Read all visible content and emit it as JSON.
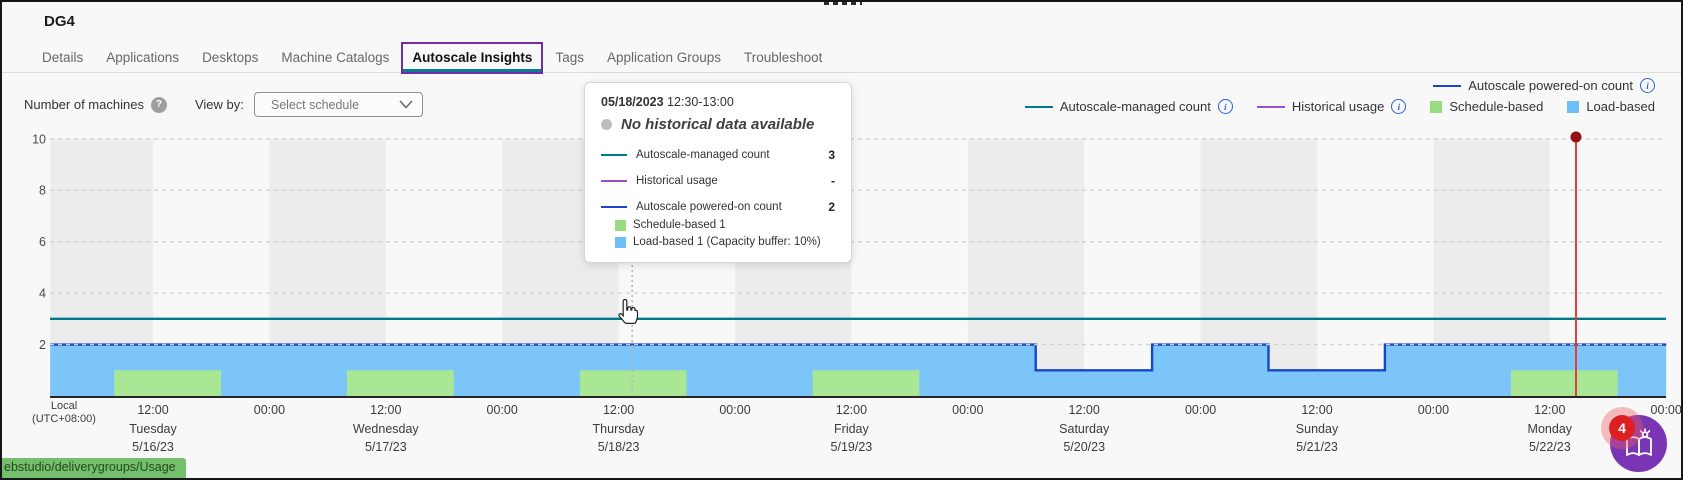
{
  "window": {
    "title": "DG4"
  },
  "tabs": [
    {
      "label": "Details",
      "active": false
    },
    {
      "label": "Applications",
      "active": false
    },
    {
      "label": "Desktops",
      "active": false
    },
    {
      "label": "Machine Catalogs",
      "active": false
    },
    {
      "label": "Autoscale Insights",
      "active": true
    },
    {
      "label": "Tags",
      "active": false
    },
    {
      "label": "Application Groups",
      "active": false
    },
    {
      "label": "Troubleshoot",
      "active": false
    }
  ],
  "controls": {
    "chart_label": "Number of machines",
    "help_glyph": "?",
    "view_by_label": "View by:",
    "schedule_placeholder": "Select schedule"
  },
  "legend": {
    "info_glyph": "i",
    "row1": [
      {
        "swatch": "line",
        "color": "#1746c8",
        "label": "Autoscale powered-on count",
        "info": true
      }
    ],
    "row2": [
      {
        "swatch": "line",
        "color": "#00798a",
        "label": "Autoscale-managed count",
        "info": true
      },
      {
        "swatch": "line",
        "color": "#9b4dcc",
        "label": "Historical usage",
        "info": true
      },
      {
        "swatch": "square",
        "color": "#97dc7f",
        "label": "Schedule-based",
        "info": false
      },
      {
        "swatch": "square",
        "color": "#6cc0f6",
        "label": "Load-based",
        "info": false
      }
    ]
  },
  "tooltip": {
    "date": "05/18/2023",
    "time_range": "12:30-13:00",
    "no_data_message": "No historical data available",
    "rows": [
      {
        "swatch": "line",
        "color": "#00798a",
        "label": "Autoscale-managed count",
        "value": "3"
      },
      {
        "swatch": "line",
        "color": "#9b4dcc",
        "label": "Historical usage",
        "value": "-"
      },
      {
        "swatch": "line",
        "color": "#1746c8",
        "label": "Autoscale powered-on count",
        "value": "2"
      },
      {
        "swatch": "square",
        "color": "#97dc7f",
        "label": "Schedule-based 1",
        "value": ""
      },
      {
        "swatch": "square",
        "color": "#6cc0f6",
        "label": "Load-based 1 (Capacity buffer: 10%)",
        "value": ""
      }
    ]
  },
  "chart_data": {
    "type": "area",
    "title": "Number of machines",
    "ylabel": "Number of machines",
    "ylim": [
      0,
      10
    ],
    "y_ticks": [
      2,
      4,
      6,
      8,
      10
    ],
    "grid": "dashed horizontal",
    "domain_hours": [
      1.4,
      168
    ],
    "shaded_band_half_day": "00:00-12:00",
    "timezone_label": [
      "Local",
      "(UTC+08:00)"
    ],
    "x_ticks": [
      {
        "hour": 12,
        "label": "12:00"
      },
      {
        "hour": 24,
        "label": "00:00"
      },
      {
        "hour": 36,
        "label": "12:00"
      },
      {
        "hour": 48,
        "label": "00:00"
      },
      {
        "hour": 60,
        "label": "12:00"
      },
      {
        "hour": 72,
        "label": "00:00"
      },
      {
        "hour": 84,
        "label": "12:00"
      },
      {
        "hour": 96,
        "label": "00:00"
      },
      {
        "hour": 108,
        "label": "12:00"
      },
      {
        "hour": 120,
        "label": "00:00"
      },
      {
        "hour": 132,
        "label": "12:00"
      },
      {
        "hour": 144,
        "label": "00:00"
      },
      {
        "hour": 156,
        "label": "12:00"
      },
      {
        "hour": 168,
        "label": "00:00"
      }
    ],
    "days": [
      {
        "name": "Tuesday",
        "date": "5/16/23",
        "noon_hour": 12
      },
      {
        "name": "Wednesday",
        "date": "5/17/23",
        "noon_hour": 36
      },
      {
        "name": "Thursday",
        "date": "5/18/23",
        "noon_hour": 60
      },
      {
        "name": "Friday",
        "date": "5/19/23",
        "noon_hour": 84
      },
      {
        "name": "Saturday",
        "date": "5/20/23",
        "noon_hour": 108
      },
      {
        "name": "Sunday",
        "date": "5/21/23",
        "noon_hour": 132
      },
      {
        "name": "Monday",
        "date": "5/22/23",
        "noon_hour": 156
      }
    ],
    "series": [
      {
        "name": "Autoscale-managed count",
        "type": "line",
        "color": "#00798a",
        "value": 3
      },
      {
        "name": "Autoscale powered-on count",
        "type": "step_line",
        "color": "#1746c8",
        "segments": [
          {
            "from_hour": 1.4,
            "to_hour": 103,
            "value": 2
          },
          {
            "from_hour": 103,
            "to_hour": 115,
            "value": 1
          },
          {
            "from_hour": 115,
            "to_hour": 127,
            "value": 2
          },
          {
            "from_hour": 127,
            "to_hour": 139,
            "value": 1
          },
          {
            "from_hour": 139,
            "to_hour": 168,
            "value": 2
          }
        ]
      },
      {
        "name": "Load-based",
        "type": "area",
        "color": "#7cc5f8",
        "follows": "Autoscale powered-on count"
      },
      {
        "name": "Schedule-based",
        "type": "area_blocks",
        "color": "#a9e795",
        "value": 1,
        "blocks": [
          {
            "from_hour": 8,
            "to_hour": 19
          },
          {
            "from_hour": 32,
            "to_hour": 43
          },
          {
            "from_hour": 56,
            "to_hour": 67
          },
          {
            "from_hour": 80,
            "to_hour": 91
          },
          {
            "from_hour": 152,
            "to_hour": 163
          }
        ]
      },
      {
        "name": "Historical usage",
        "type": "line",
        "color": "#9b4dcc",
        "value": null
      }
    ],
    "markers": {
      "current_time_hour": 158.7,
      "current_time_color": "#e23d3d",
      "crosshair_hour": 61.4
    }
  },
  "status_link": {
    "text": "ebstudio/deliverygroups/Usage"
  },
  "help_widget": {
    "badge_count": "4"
  }
}
